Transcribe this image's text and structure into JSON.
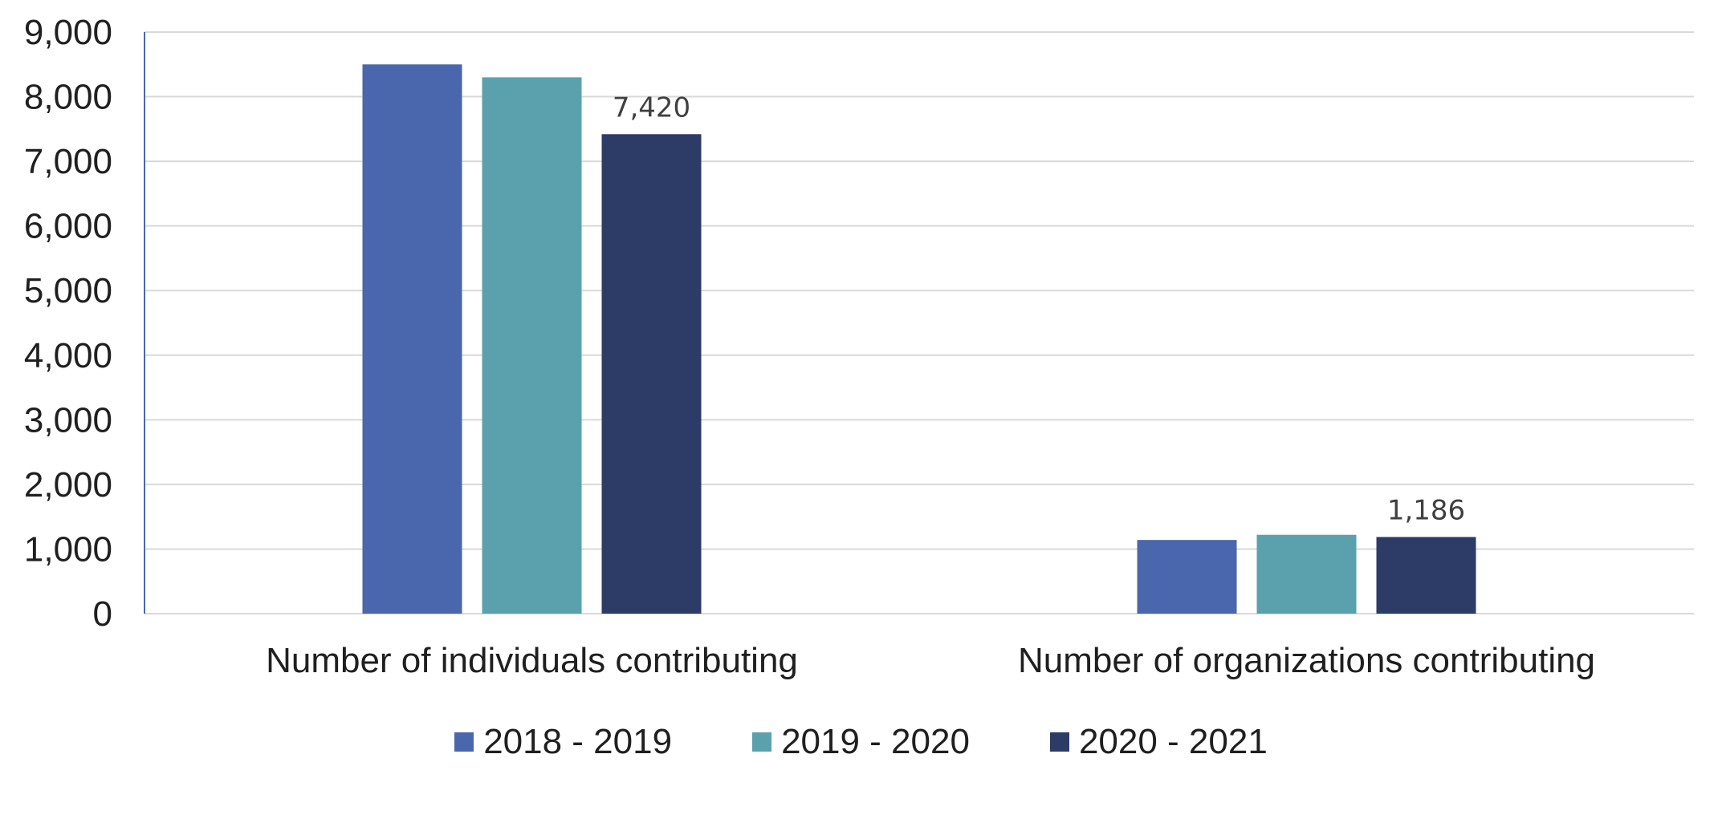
{
  "chart_data": {
    "type": "bar",
    "categories": [
      "Number of individuals contributing",
      "Number of organizations contributing"
    ],
    "series": [
      {
        "name": "2018 - 2019",
        "values": [
          8500,
          1140
        ],
        "color": "#4a66ad"
      },
      {
        "name": "2019 - 2020",
        "values": [
          8300,
          1220
        ],
        "color": "#5aa1ad"
      },
      {
        "name": "2020 - 2021",
        "values": [
          7420,
          1186
        ],
        "color": "#2d3c66"
      }
    ],
    "data_labels": [
      {
        "series": 2,
        "category": 0,
        "text": "7,420"
      },
      {
        "series": 2,
        "category": 1,
        "text": "1,186"
      }
    ],
    "y_ticks": [
      "0",
      "1,000",
      "2,000",
      "3,000",
      "4,000",
      "5,000",
      "6,000",
      "7,000",
      "8,000",
      "9,000"
    ],
    "ylim": [
      0,
      9000
    ],
    "grid": true,
    "legend_position": "bottom",
    "title": "",
    "xlabel": "",
    "ylabel": ""
  }
}
